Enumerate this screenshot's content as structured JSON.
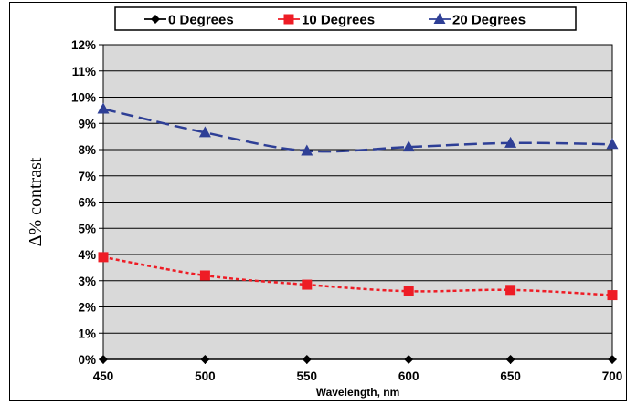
{
  "chart_data": {
    "type": "line",
    "xlabel": "Wavelength, nm",
    "ylabel": "Δ% contrast",
    "x": [
      450,
      500,
      550,
      600,
      650,
      700
    ],
    "xlim": [
      450,
      700
    ],
    "ylim": [
      0,
      12
    ],
    "y_ticks": [
      "0%",
      "1%",
      "2%",
      "3%",
      "4%",
      "5%",
      "6%",
      "7%",
      "8%",
      "9%",
      "10%",
      "11%",
      "12%"
    ],
    "x_ticks": [
      "450",
      "500",
      "550",
      "600",
      "650",
      "700"
    ],
    "grid": true,
    "legend_position": "top",
    "plot_background": "#d9d9d9",
    "series": [
      {
        "name": "0 Degrees",
        "values": [
          0,
          0,
          0,
          0,
          0,
          0
        ],
        "color": "#000000",
        "marker": "diamond",
        "line_style": "solid"
      },
      {
        "name": "10 Degrees",
        "values": [
          3.9,
          3.2,
          2.85,
          2.6,
          2.65,
          2.45
        ],
        "color": "#ee1c25",
        "marker": "square",
        "line_style": "dotted"
      },
      {
        "name": "20 Degrees",
        "values": [
          9.55,
          8.65,
          7.95,
          8.1,
          8.25,
          8.2
        ],
        "color": "#2e3f96",
        "marker": "triangle",
        "line_style": "dashed"
      }
    ]
  }
}
